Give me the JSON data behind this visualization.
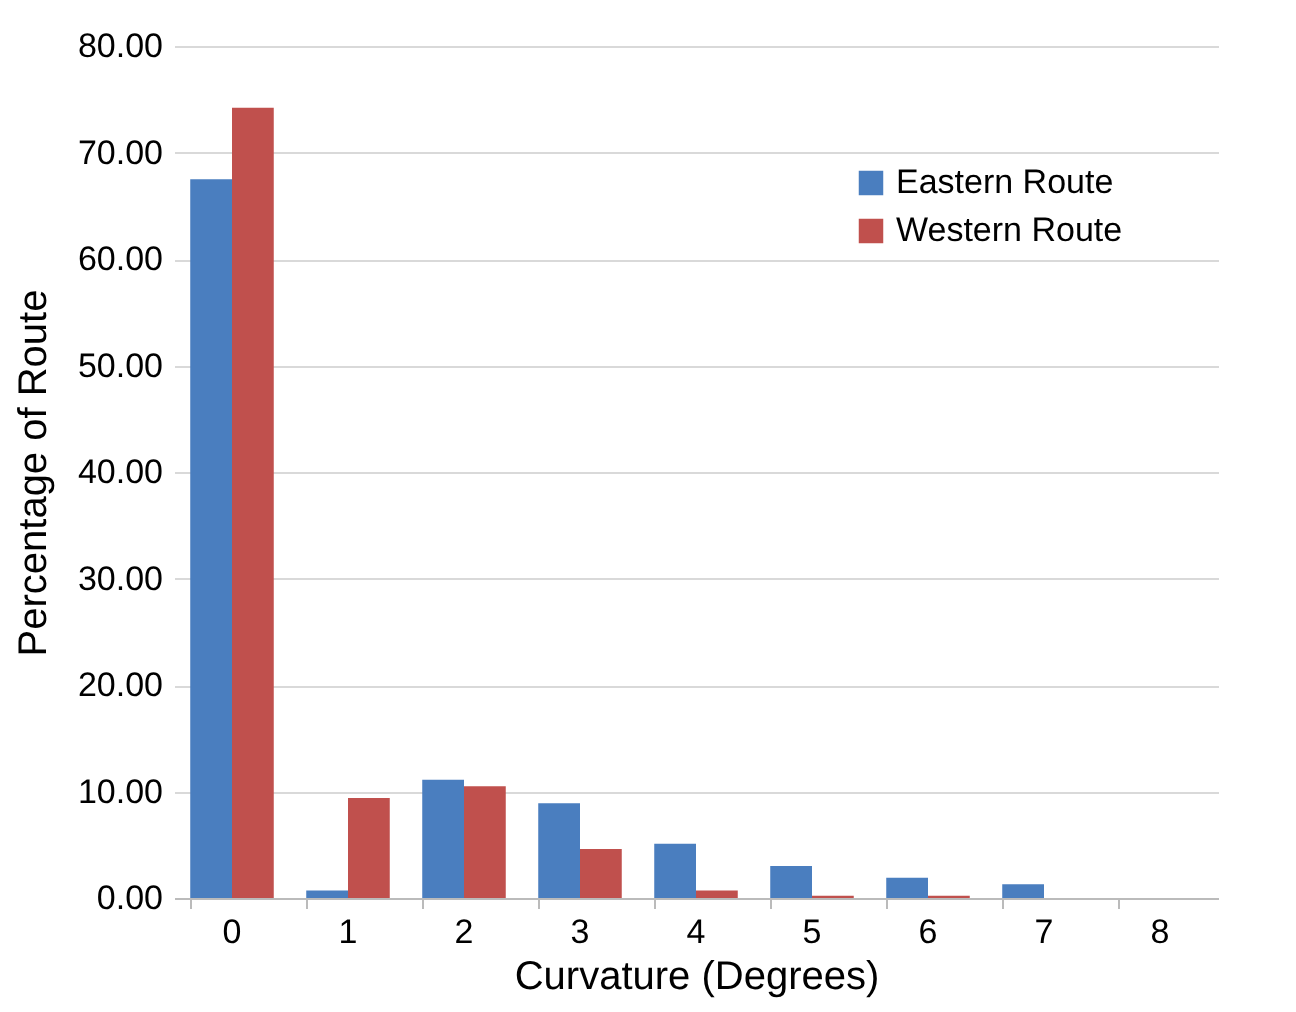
{
  "chart_data": {
    "type": "bar",
    "xlabel": "Curvature (Degrees)",
    "ylabel": "Percentage of Route",
    "categories": [
      "0",
      "1",
      "2",
      "3",
      "4",
      "5",
      "6",
      "7",
      "8"
    ],
    "series": [
      {
        "name": "Eastern Route",
        "color": "#4a7ebf",
        "values": [
          67.5,
          0.7,
          11.1,
          8.9,
          5.1,
          3.0,
          1.9,
          1.3,
          0
        ]
      },
      {
        "name": "Western Route",
        "color": "#c0504d",
        "values": [
          74.2,
          9.4,
          10.5,
          4.6,
          0.7,
          0.2,
          0.2,
          0,
          0
        ]
      }
    ],
    "ylim": [
      0,
      80
    ],
    "yticks": [
      {
        "value": 0,
        "label": "0.00"
      },
      {
        "value": 10,
        "label": "10.00"
      },
      {
        "value": 20,
        "label": "20.00"
      },
      {
        "value": 30,
        "label": "30.00"
      },
      {
        "value": 40,
        "label": "40.00"
      },
      {
        "value": 50,
        "label": "50.00"
      },
      {
        "value": 60,
        "label": "60.00"
      },
      {
        "value": 70,
        "label": "70.00"
      },
      {
        "value": 80,
        "label": "80.00"
      }
    ],
    "grid": "y",
    "legend": "top right"
  }
}
